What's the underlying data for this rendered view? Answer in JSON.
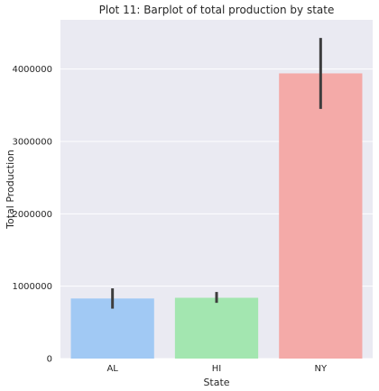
{
  "chart_data": {
    "type": "bar",
    "title": "Plot 11: Barplot of total production by state",
    "xlabel": "State",
    "ylabel": "Total Production",
    "categories": [
      "AL",
      "HI",
      "NY"
    ],
    "values": [
      830000,
      840000,
      3940000
    ],
    "error_bars": [
      {
        "low": 690000,
        "high": 970000
      },
      {
        "low": 770000,
        "high": 920000
      },
      {
        "low": 3450000,
        "high": 4430000
      }
    ],
    "colors": [
      "#a1c9f4",
      "#a3e6b0",
      "#f4aaa8"
    ],
    "error_color": "#3d3d3d",
    "background": "#eaeaf2",
    "grid": true,
    "grid_color": "#ffffff",
    "ylim": [
      0,
      4680000
    ],
    "yticks": [
      0,
      1000000,
      2000000,
      3000000,
      4000000
    ],
    "ytick_labels": [
      "0",
      "1000000",
      "2000000",
      "3000000",
      "4000000"
    ]
  }
}
